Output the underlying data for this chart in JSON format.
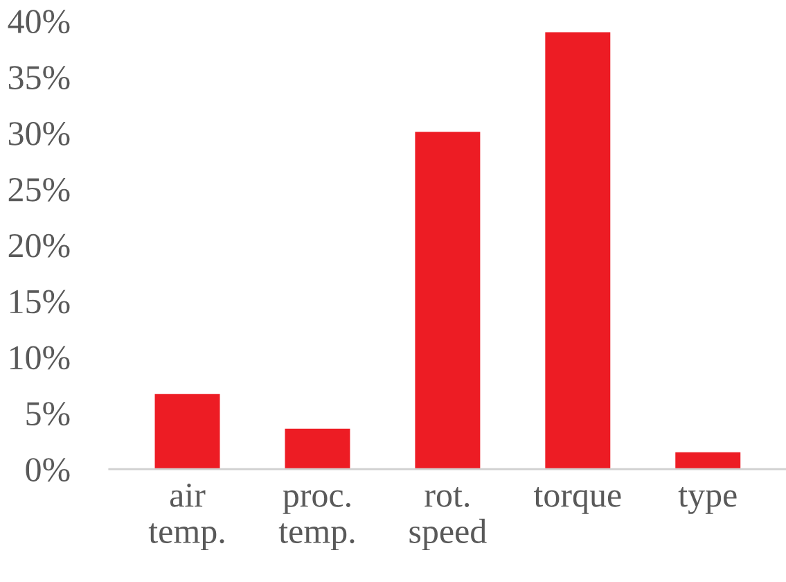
{
  "chart_data": {
    "type": "bar",
    "categories": [
      "air\ntemp.",
      "proc.\ntemp.",
      "rot.\nspeed",
      "torque",
      "type"
    ],
    "values": [
      6.7,
      3.6,
      30.1,
      39.0,
      1.5
    ],
    "color": "#ed1c24",
    "ylim": [
      0,
      40
    ],
    "yticks": [
      {
        "value": 0,
        "label": "0%"
      },
      {
        "value": 5,
        "label": "5%"
      },
      {
        "value": 10,
        "label": "10%"
      },
      {
        "value": 15,
        "label": "15%"
      },
      {
        "value": 20,
        "label": "20%"
      },
      {
        "value": 25,
        "label": "25%"
      },
      {
        "value": 30,
        "label": "30%"
      },
      {
        "value": 35,
        "label": "35%"
      },
      {
        "value": 40,
        "label": "40%"
      }
    ],
    "grid": false,
    "legend": false
  }
}
